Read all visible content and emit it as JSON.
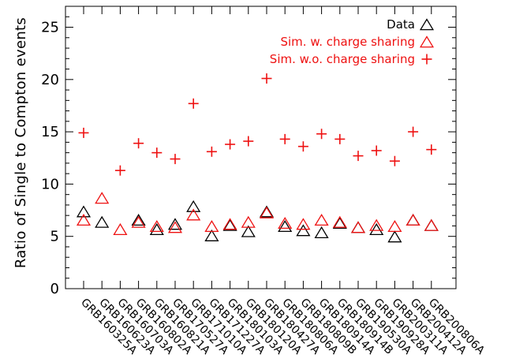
{
  "chart_data": {
    "type": "scatter",
    "title": "",
    "xlabel": "",
    "ylabel": "Ratio of Single to Compton events",
    "ylim": [
      0,
      27
    ],
    "yticks": [
      0,
      5,
      10,
      15,
      20,
      25
    ],
    "categories": [
      "GRB160325A",
      "GRB160623A",
      "GRB160703A",
      "GRB160802A",
      "GRB160821A",
      "GRB170527A",
      "GRB171010A",
      "GRB171227A",
      "GRB180103A",
      "GRB180120A",
      "GRB180427A",
      "GRB180806A",
      "GRB180809B",
      "GRB180914A",
      "GRB180914B",
      "GRB190530A",
      "GRB190928A",
      "GRB200311A",
      "GRB200412A",
      "GRB200806A"
    ],
    "grid": false,
    "legend_position": "top-right",
    "series": [
      {
        "name": "Data",
        "marker": "triangle",
        "color": "#000000",
        "values": [
          7.3,
          6.3,
          null,
          6.5,
          5.6,
          6.1,
          7.8,
          5.0,
          6.0,
          5.4,
          7.3,
          5.9,
          5.5,
          5.3,
          6.2,
          5.8,
          5.6,
          4.9,
          6.5,
          6.0
        ]
      },
      {
        "name": "Sim. w. charge sharing",
        "marker": "triangle",
        "color": "#ee1111",
        "values": [
          6.5,
          8.6,
          5.6,
          6.3,
          5.9,
          5.8,
          7.0,
          5.9,
          6.1,
          6.3,
          7.2,
          6.2,
          6.1,
          6.5,
          6.3,
          5.8,
          6.0,
          5.9,
          6.5,
          6.0
        ]
      },
      {
        "name": "Sim. w.o. charge sharing",
        "marker": "plus",
        "color": "#ee1111",
        "values": [
          14.9,
          null,
          11.3,
          13.9,
          13.0,
          12.4,
          17.7,
          13.1,
          13.8,
          14.1,
          20.1,
          14.3,
          13.6,
          14.8,
          14.3,
          12.7,
          13.2,
          12.2,
          15.0,
          13.3
        ]
      }
    ]
  }
}
